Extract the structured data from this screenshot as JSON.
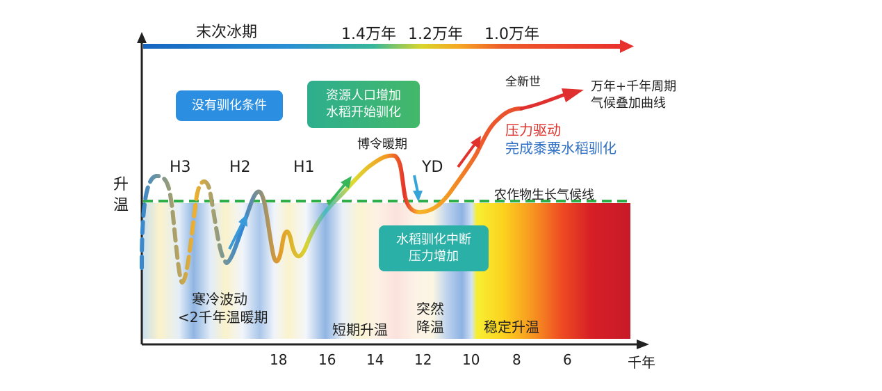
{
  "timeline": {
    "left_label": "末次冰期",
    "ages": [
      "1.4万年",
      "1.2万年",
      "1.0万年"
    ]
  },
  "y_axis": {
    "label": [
      "升",
      "温"
    ]
  },
  "x_axis": {
    "ticks": [
      "18",
      "16",
      "14",
      "12",
      "10",
      "8",
      "6"
    ],
    "unit": "千年"
  },
  "events": {
    "h3": "H3",
    "h2": "H2",
    "h1": "H1",
    "yd": "YD"
  },
  "periods": {
    "bolling": "博令暖期",
    "holocene": "全新世",
    "crop_line": "农作物生长气候线",
    "superposition": [
      "万年+千年周期",
      "气候叠加曲线"
    ],
    "cold_fluct": [
      "寒冷波动",
      "<2千年温暖期"
    ],
    "short_warm": "短期升温",
    "sudden_cool": [
      "突然",
      "降温"
    ],
    "stable_warm": "稳定升温",
    "pressure": [
      "压力驱动",
      "完成黍粟水稻驯化"
    ]
  },
  "boxes": {
    "no_domestication": [
      "没有驯化条件"
    ],
    "resource_pop": [
      "资源人口增加",
      "水稻开始驯化"
    ],
    "interruption": [
      "水稻驯化中断",
      "压力增加"
    ]
  },
  "colors": {
    "box_blue": "#2c8ee0",
    "box_green": "#36b488",
    "box_teal": "#2ab0a6",
    "crop_line": "#2fae4a",
    "timeline_start": "#1565c0",
    "timeline_end": "#e8302c",
    "pressure_red": "#e0332e",
    "pressure_blue": "#2f6fc4"
  }
}
